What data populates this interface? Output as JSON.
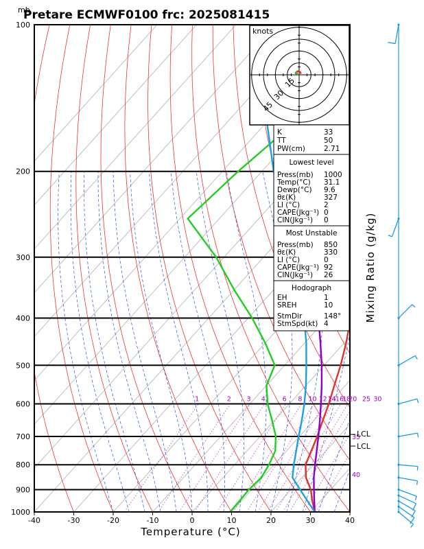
{
  "chart_data": {
    "type": "line",
    "title": "Pretare ECMWF0100  frc: 2025081415",
    "pressure_unit_label": "mb",
    "xlabel": "Temperature  (°C)",
    "right_axis_label": "Mixing  Ratio  (g/kg)",
    "xlim": [
      -40,
      40
    ],
    "ylim": [
      1000,
      100
    ],
    "x_ticks": [
      -40,
      -30,
      -20,
      -10,
      0,
      10,
      20,
      30,
      40
    ],
    "y_ticks": [
      100,
      200,
      300,
      400,
      500,
      600,
      700,
      800,
      900,
      1000
    ],
    "grid": "skew-T with dry adiabats, moist adiabats and mixing-ratio lines",
    "mixing_ratio_labels": [
      "1",
      "2",
      "3",
      "4",
      "6",
      "8",
      "10",
      "12",
      "14",
      "16",
      "18",
      "20",
      "25",
      "30"
    ],
    "adiabat_labels": [
      "35",
      "40"
    ],
    "lcl_labels": [
      "LCL",
      "LCL"
    ],
    "series": [
      {
        "name": "Temperature",
        "color": "#e03030",
        "points": [
          [
            1000,
            31.1
          ],
          [
            950,
            28
          ],
          [
            900,
            25
          ],
          [
            850,
            21
          ],
          [
            800,
            18
          ],
          [
            750,
            16.3
          ],
          [
            700,
            14.5
          ],
          [
            650,
            12.3
          ],
          [
            600,
            10
          ],
          [
            550,
            7.2
          ],
          [
            500,
            4.2
          ],
          [
            450,
            0.5
          ],
          [
            400,
            -4
          ],
          [
            350,
            -10
          ],
          [
            300,
            -18
          ],
          [
            250,
            -28
          ],
          [
            200,
            -40
          ],
          [
            150,
            -54
          ],
          [
            100,
            -72
          ]
        ]
      },
      {
        "name": "Dewpoint",
        "color": "#22cc22",
        "points": [
          [
            1000,
            9.6
          ],
          [
            950,
            9.5
          ],
          [
            900,
            9.3
          ],
          [
            850,
            9.7
          ],
          [
            800,
            8.7
          ],
          [
            750,
            7.2
          ],
          [
            700,
            4
          ],
          [
            650,
            -0.5
          ],
          [
            600,
            -5.5
          ],
          [
            550,
            -10
          ],
          [
            500,
            -12.5
          ],
          [
            450,
            -20
          ],
          [
            400,
            -29
          ],
          [
            350,
            -40
          ],
          [
            300,
            -52
          ],
          [
            250,
            -68
          ],
          [
            200,
            -66
          ],
          [
            150,
            -62
          ],
          [
            100,
            -58
          ]
        ]
      },
      {
        "name": "Parcel",
        "color": "#8a00c8",
        "points": [
          [
            1000,
            31.1
          ],
          [
            950,
            28.5
          ],
          [
            900,
            25.8
          ],
          [
            850,
            23
          ],
          [
            800,
            20.4
          ],
          [
            750,
            17.7
          ],
          [
            700,
            14.8
          ],
          [
            650,
            11.6
          ],
          [
            600,
            8
          ],
          [
            550,
            4
          ],
          [
            500,
            -0.6
          ],
          [
            450,
            -6
          ],
          [
            400,
            -12.2
          ],
          [
            350,
            -19.8
          ],
          [
            300,
            -29
          ],
          [
            250,
            -40
          ],
          [
            200,
            -53
          ],
          [
            150,
            -69
          ],
          [
            100,
            -88
          ]
        ]
      },
      {
        "name": "Dry parcel",
        "color": "#1aa0e8",
        "points": [
          [
            1000,
            31.1
          ],
          [
            950,
            26.8
          ],
          [
            900,
            22.3
          ],
          [
            850,
            17.6
          ],
          [
            800,
            15
          ],
          [
            750,
            12.5
          ],
          [
            700,
            9.8
          ],
          [
            650,
            7
          ],
          [
            600,
            3.8
          ],
          [
            550,
            0
          ],
          [
            500,
            -4.5
          ],
          [
            450,
            -9.6
          ],
          [
            400,
            -15.8
          ],
          [
            350,
            -23.4
          ],
          [
            300,
            -32.6
          ],
          [
            250,
            -43.8
          ],
          [
            200,
            -57
          ],
          [
            150,
            -73
          ],
          [
            100,
            -93
          ]
        ]
      }
    ],
    "hodograph": {
      "unit": "knots",
      "ring_labels": [
        "15",
        "30",
        "45"
      ],
      "rings_kt": [
        15,
        30,
        45,
        60
      ],
      "trace_uv": [
        [
          2,
          1
        ],
        [
          1,
          3
        ],
        [
          -1,
          4
        ],
        [
          -3,
          3
        ],
        [
          -4,
          2
        ],
        [
          -3,
          1
        ],
        [
          -1,
          2
        ]
      ]
    },
    "wind_barbs": [
      {
        "p": 1000,
        "dir": 130,
        "kt": 9
      },
      {
        "p": 975,
        "dir": 125,
        "kt": 10
      },
      {
        "p": 950,
        "dir": 120,
        "kt": 10
      },
      {
        "p": 925,
        "dir": 115,
        "kt": 11
      },
      {
        "p": 900,
        "dir": 110,
        "kt": 9
      },
      {
        "p": 850,
        "dir": 100,
        "kt": 7
      },
      {
        "p": 800,
        "dir": 95,
        "kt": 6
      },
      {
        "p": 700,
        "dir": 80,
        "kt": 6
      },
      {
        "p": 600,
        "dir": 75,
        "kt": 6
      },
      {
        "p": 500,
        "dir": 60,
        "kt": 5
      },
      {
        "p": 400,
        "dir": 45,
        "kt": 5
      },
      {
        "p": 250,
        "dir": 200,
        "kt": 8
      },
      {
        "p": 100,
        "dir": 190,
        "kt": 12
      }
    ],
    "indices": {
      "rows": [
        [
          "K",
          "33"
        ],
        [
          "TT",
          "50"
        ],
        [
          "PW(cm)",
          "2.71"
        ]
      ]
    },
    "lowest_level": {
      "heading": "Lowest level",
      "rows": [
        [
          "Press(mb)",
          "1000"
        ],
        [
          "Temp(°C)",
          "31.1"
        ],
        [
          "Dewp(°C)",
          "9.6"
        ],
        [
          "θε(K)",
          "327"
        ],
        [
          "LI  (°C)",
          "2"
        ],
        [
          "CAPE(Jkg⁻¹)",
          "0"
        ],
        [
          "CIN(Jkg⁻¹)",
          "0"
        ]
      ]
    },
    "most_unstable": {
      "heading": "Most Unstable",
      "rows": [
        [
          "Press(mb)",
          "850"
        ],
        [
          "θε(K)",
          "330"
        ],
        [
          "LI  (°C)",
          "0"
        ],
        [
          "CAPE(Jkg⁻¹)",
          "92"
        ],
        [
          "CIN(Jkg⁻¹)",
          "26"
        ]
      ]
    },
    "hodograph_params": {
      "heading": "Hodograph",
      "rows": [
        [
          "EH",
          "1"
        ],
        [
          "SREH",
          "10"
        ],
        [
          "StmDir",
          "148°"
        ],
        [
          "StmSpd(kt)",
          "4"
        ]
      ]
    }
  }
}
